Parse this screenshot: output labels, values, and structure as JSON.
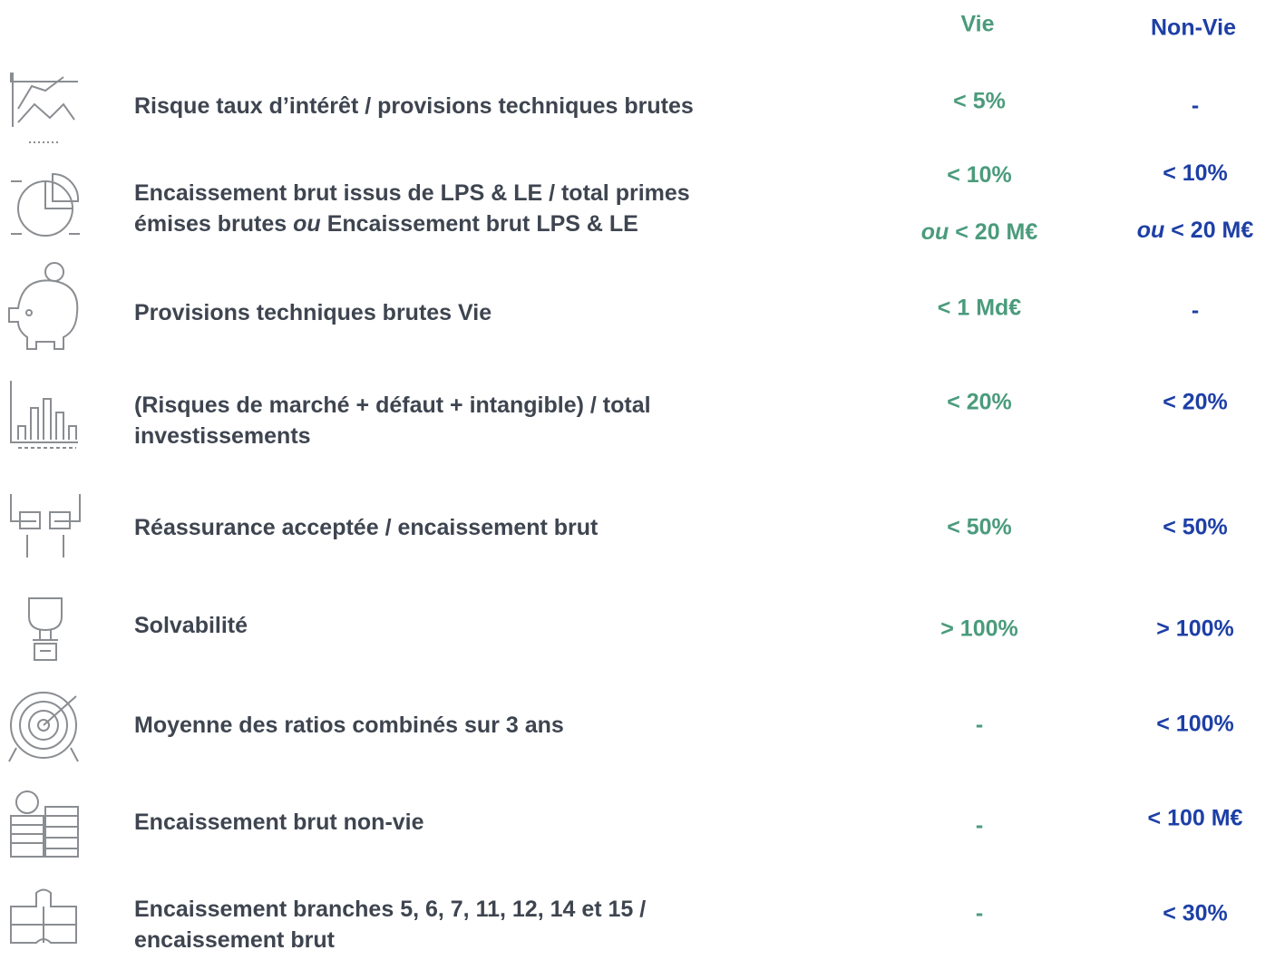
{
  "header": {
    "vie": "Vie",
    "nonvie": "Non-Vie"
  },
  "rows": [
    {
      "label": [
        "Risque taux d’intérêt / provisions techniques brutes"
      ],
      "vie": [
        "< 5%"
      ],
      "nonvie": [
        "-"
      ]
    },
    {
      "label": [
        "Encaissement brut issus de LPS & LE / total primes",
        [
          {
            "text": "émises brutes"
          },
          {
            "text": "ou",
            "italic": true
          },
          {
            "text": "Encaissement brut LPS & LE"
          }
        ]
      ],
      "vie": [
        "< 10%",
        [
          {
            "text": "ou",
            "italic": true
          },
          {
            "text": "< 20 M€"
          }
        ]
      ],
      "nonvie": [
        "< 10%",
        [
          {
            "text": "ou",
            "italic": true
          },
          {
            "text": "< 20 M€"
          }
        ]
      ]
    },
    {
      "label": [
        "Provisions techniques brutes Vie"
      ],
      "vie": [
        "< 1 Md€"
      ],
      "nonvie": [
        "-"
      ]
    },
    {
      "label": [
        "(Risques de marché + défaut + intangible) / total",
        "investissements"
      ],
      "vie": [
        "< 20%"
      ],
      "nonvie": [
        "< 20%"
      ]
    },
    {
      "label": [
        "Réassurance acceptée / encaissement brut"
      ],
      "vie": [
        "< 50%"
      ],
      "nonvie": [
        "< 50%"
      ]
    },
    {
      "label": [
        "Solvabilité"
      ],
      "vie": [
        "> 100%"
      ],
      "nonvie": [
        "> 100%"
      ]
    },
    {
      "label": [
        "Moyenne des ratios combinés sur 3 ans"
      ],
      "vie": [
        "-"
      ],
      "nonvie": [
        "< 100%"
      ]
    },
    {
      "label": [
        "Encaissement brut non-vie"
      ],
      "vie": [
        "-"
      ],
      "nonvie": [
        "< 100 M€"
      ]
    },
    {
      "label": [
        "Encaissement branches 5, 6, 7, 11, 12, 14 et 15 /",
        "encaissement brut"
      ],
      "vie": [
        "-"
      ],
      "nonvie": [
        "< 30%"
      ]
    }
  ]
}
